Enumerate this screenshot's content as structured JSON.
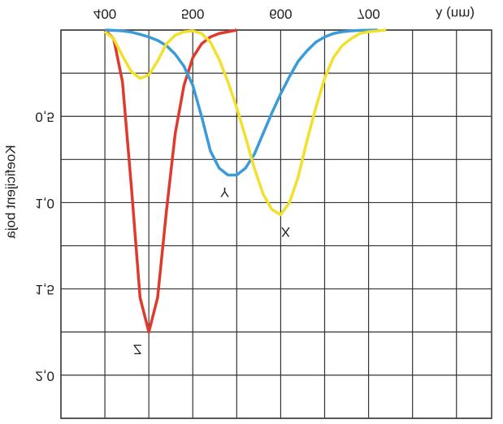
{
  "chart_data": {
    "type": "line",
    "y_label": "Koeficijent boja",
    "x_label": "λ (nm)",
    "x": [
      400,
      410,
      420,
      430,
      440,
      450,
      460,
      470,
      480,
      490,
      500,
      510,
      520,
      530,
      540,
      550,
      560,
      570,
      580,
      590,
      600,
      610,
      620,
      630,
      640,
      650,
      660,
      670,
      680,
      690,
      700,
      710,
      720
    ],
    "series": [
      {
        "name": "Z",
        "color": "#e03a2f",
        "values": [
          0,
          0.05,
          0.3,
          0.9,
          1.55,
          1.75,
          1.55,
          1.05,
          0.6,
          0.32,
          0.16,
          0.08,
          0.04,
          0.02,
          0.01,
          0,
          null,
          null,
          null,
          null,
          null,
          null,
          null,
          null,
          null,
          null,
          null,
          null,
          null,
          null,
          null,
          null,
          null
        ]
      },
      {
        "name": "Y",
        "color": "#3a9bd8",
        "values": [
          0,
          0.002,
          0.005,
          0.012,
          0.025,
          0.04,
          0.06,
          0.09,
          0.14,
          0.21,
          0.32,
          0.5,
          0.7,
          0.8,
          0.84,
          0.84,
          0.8,
          0.72,
          0.6,
          0.48,
          0.37,
          0.27,
          0.18,
          0.12,
          0.07,
          0.04,
          0.02,
          0.01,
          0.005,
          0.002,
          0.001,
          0,
          null
        ]
      },
      {
        "name": "X",
        "color": "#f2e02a",
        "values": [
          0.01,
          0.05,
          0.15,
          0.24,
          0.28,
          0.26,
          0.18,
          0.08,
          0.03,
          0.01,
          0.005,
          0.02,
          0.07,
          0.17,
          0.3,
          0.45,
          0.62,
          0.8,
          0.95,
          1.04,
          1.07,
          1.0,
          0.85,
          0.64,
          0.45,
          0.28,
          0.16,
          0.09,
          0.05,
          0.02,
          0.01,
          0.005,
          0
        ]
      }
    ],
    "xlim": [
      350,
      840
    ],
    "ylim": [
      0,
      2.25
    ],
    "xticks": [
      400,
      500,
      600,
      700
    ],
    "xgrid": [
      350,
      400,
      450,
      500,
      550,
      600,
      650,
      700,
      750,
      800
    ],
    "yticks": [
      {
        "value": 0.5,
        "label": "0,5"
      },
      {
        "value": 1.0,
        "label": "1,0"
      },
      {
        "value": 1.5,
        "label": "1,5"
      },
      {
        "value": 2.0,
        "label": "2,0"
      }
    ],
    "ygrid": [
      0,
      0.25,
      0.5,
      0.75,
      1,
      1.25,
      1.5,
      1.75,
      2,
      2.25
    ],
    "y_inverted": true
  }
}
